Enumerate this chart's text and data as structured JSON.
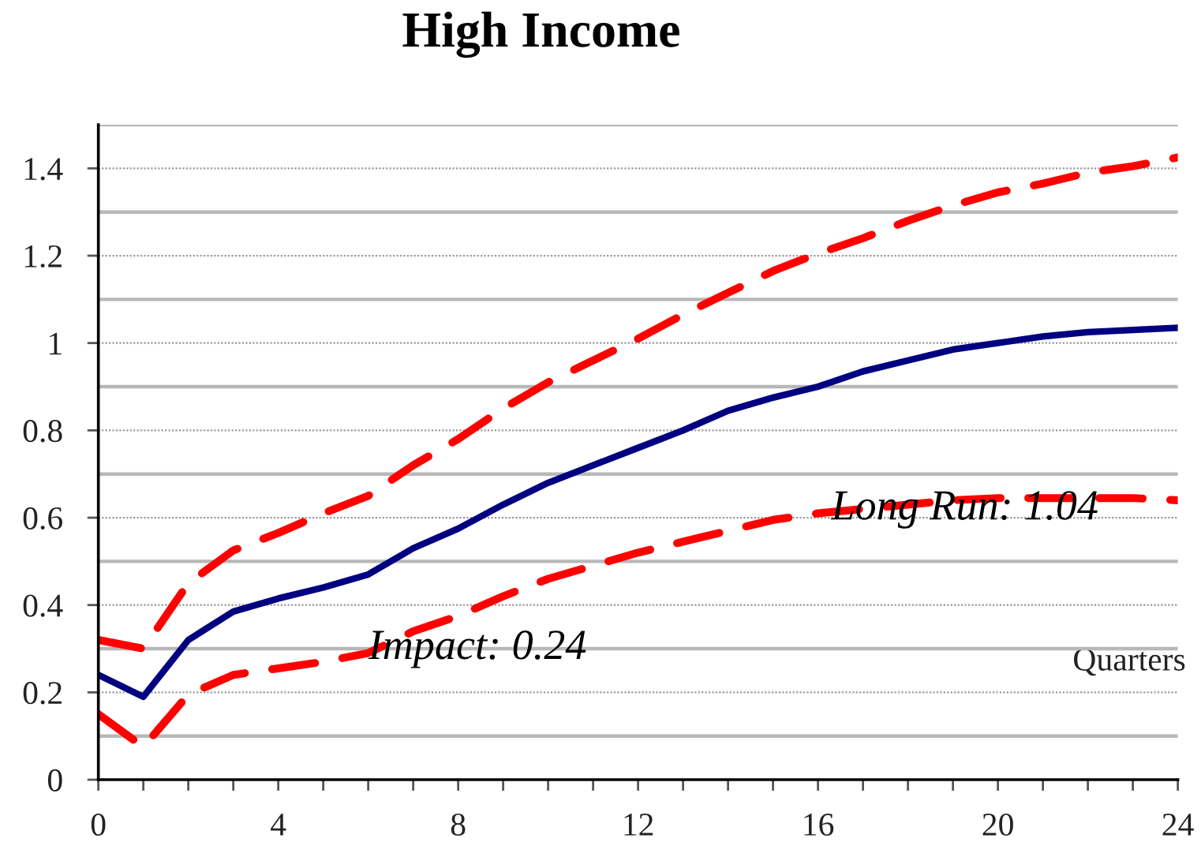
{
  "chart_data": {
    "type": "line",
    "title": "High Income",
    "xlabel": "Quarters",
    "x": [
      0,
      1,
      2,
      3,
      4,
      5,
      6,
      7,
      8,
      9,
      10,
      11,
      12,
      13,
      14,
      15,
      16,
      17,
      18,
      19,
      20,
      21,
      22,
      23,
      24
    ],
    "series": [
      {
        "color": "#000080",
        "line_style": "solid",
        "values": [
          0.24,
          0.19,
          0.32,
          0.385,
          0.415,
          0.44,
          0.47,
          0.53,
          0.575,
          0.63,
          0.68,
          0.72,
          0.76,
          0.8,
          0.845,
          0.875,
          0.9,
          0.935,
          0.96,
          0.985,
          1.0,
          1.015,
          1.025,
          1.03,
          1.035
        ]
      },
      {
        "color": "#ff0000",
        "line_style": "dashed",
        "values": [
          0.32,
          0.3,
          0.45,
          0.525,
          0.565,
          0.61,
          0.65,
          0.72,
          0.78,
          0.85,
          0.91,
          0.96,
          1.01,
          1.065,
          1.115,
          1.165,
          1.205,
          1.24,
          1.28,
          1.315,
          1.345,
          1.365,
          1.39,
          1.405,
          1.425
        ]
      },
      {
        "color": "#ff0000",
        "line_style": "dashed",
        "values": [
          0.15,
          0.075,
          0.195,
          0.24,
          0.255,
          0.27,
          0.29,
          0.34,
          0.375,
          0.42,
          0.46,
          0.49,
          0.52,
          0.545,
          0.57,
          0.595,
          0.61,
          0.62,
          0.63,
          0.64,
          0.645,
          0.645,
          0.645,
          0.645,
          0.64
        ]
      }
    ],
    "xlim": [
      0,
      24
    ],
    "ylim": [
      0,
      1.5
    ],
    "xticks": [
      0,
      {
        "value": 1,
        "label": null
      },
      {
        "value": 2,
        "label": null
      },
      {
        "value": 3,
        "label": null
      },
      4,
      {
        "value": 5,
        "label": null
      },
      {
        "value": 6,
        "label": null
      },
      {
        "value": 7,
        "label": null
      },
      8,
      {
        "value": 9,
        "label": null
      },
      {
        "value": 10,
        "label": null
      },
      {
        "value": 11,
        "label": null
      },
      12,
      {
        "value": 13,
        "label": null
      },
      {
        "value": 14,
        "label": null
      },
      {
        "value": 15,
        "label": null
      },
      16,
      {
        "value": 17,
        "label": null
      },
      {
        "value": 18,
        "label": null
      },
      {
        "value": 19,
        "label": null
      },
      20,
      {
        "value": 21,
        "label": null
      },
      {
        "value": 22,
        "label": null
      },
      {
        "value": 23,
        "label": null
      },
      24
    ],
    "yticks": [
      0,
      0.2,
      0.4,
      0.6,
      0.8,
      1,
      1.2,
      1.4
    ],
    "grid": "y",
    "annotations": [
      "Impact: 0.24",
      "Long Run: 1.04"
    ]
  }
}
